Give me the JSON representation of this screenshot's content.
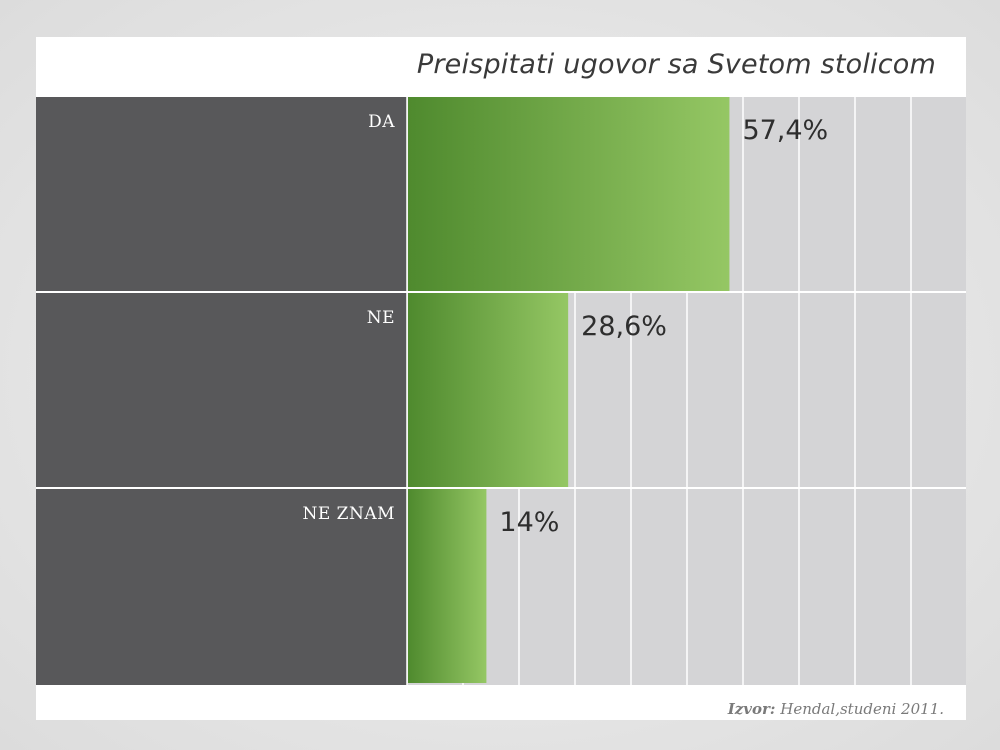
{
  "chart_data": {
    "type": "bar",
    "orientation": "horizontal",
    "title": "Preispitati ugovor sa Svetom stolicom",
    "categories": [
      "DA",
      "NE",
      "NE ZNAM"
    ],
    "values": [
      57.4,
      28.6,
      14
    ],
    "value_labels": [
      "57,4%",
      "28,6%",
      "14%"
    ],
    "unit": "%",
    "xlim": [
      0,
      100
    ],
    "grid": true,
    "colors": {
      "bar_dark": "#4f8a2e",
      "bar_light": "#95c764",
      "label_panel": "#58585a",
      "plot_background": "#d4d4d6",
      "gridline": "#ffffff"
    }
  },
  "source": {
    "label": "Izvor:",
    "text": " Hendal,studeni 2011."
  }
}
